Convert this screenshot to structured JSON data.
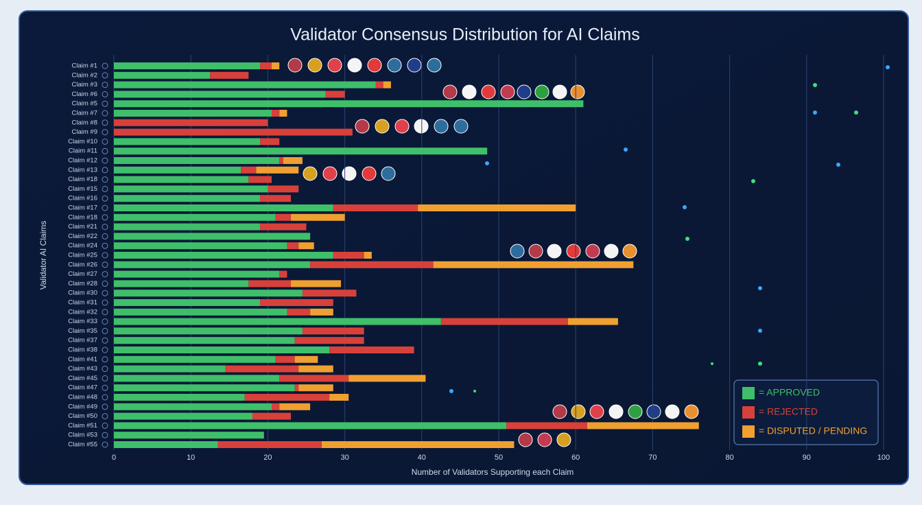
{
  "chart_data": {
    "type": "stacked_barh",
    "title": "Validator Consensus Distribution for AI Claims",
    "xlabel": "Number of Validators Supporting each Claim",
    "ylabel": "Validator AI Claims",
    "categories": [
      "Claim #1",
      "Claim #2",
      "Claim #3",
      "Claim #6",
      "Claim #5",
      "Claim #7",
      "Claim #8",
      "Claim #9",
      "Claim #10",
      "Claim #11",
      "Claim #12",
      "Claim #13",
      "Claim #18",
      "Claim #15",
      "Claim #16",
      "Claim #17",
      "Claim #18",
      "Claim #21",
      "Claim #22",
      "Claim #24",
      "Claim #25",
      "Claim #26",
      "Claim #27",
      "Claim #28",
      "Claim #30",
      "Claim #31",
      "Claim #32",
      "Claim #33",
      "Claim #35",
      "Claim #37",
      "Claim #38",
      "Claim #41",
      "Claim #43",
      "Claim #45",
      "Claim #47",
      "Claim #48",
      "Claim #49",
      "Claim #50",
      "Claim #51",
      "Claim #53",
      "Claim #55"
    ],
    "series": [
      {
        "name": "= APPROVED",
        "color": "#3fbf6a",
        "values": [
          19,
          12.5,
          34,
          27.5,
          61,
          20.5,
          0,
          0,
          19,
          48.5,
          21.5,
          16.5,
          17.5,
          20,
          19,
          28.5,
          21,
          19,
          25.5,
          22.5,
          28.5,
          25.5,
          21.5,
          17.5,
          24.5,
          19,
          22.5,
          42.5,
          24.5,
          23.5,
          28,
          21,
          14.5,
          21.5,
          23.5,
          17,
          20.5,
          18,
          51,
          19.5,
          13.5
        ]
      },
      {
        "name": "= REJECTED",
        "color": "#d8413a",
        "values": [
          1.5,
          5,
          1,
          2.5,
          0,
          1,
          20,
          31,
          2.5,
          0,
          0.5,
          2,
          3,
          4,
          4,
          11,
          2,
          6,
          0,
          1.5,
          4,
          16,
          1,
          5.5,
          7,
          9.5,
          3,
          16.5,
          8,
          9,
          11,
          2.5,
          9.5,
          9,
          0.5,
          11,
          1,
          5,
          10.5,
          0,
          13.5
        ]
      },
      {
        "name": "= DISPUTED / PENDING",
        "color": "#f0a030",
        "values": [
          1,
          0,
          1,
          0,
          0,
          1,
          0,
          0,
          0,
          0,
          2.5,
          5.5,
          0,
          0,
          0,
          20.5,
          7,
          0,
          0,
          2,
          1,
          26,
          0,
          6.5,
          0,
          0,
          3,
          6.5,
          0,
          0,
          0,
          3,
          4.5,
          10,
          4.5,
          2.5,
          4,
          0,
          14.5,
          0,
          25
        ]
      }
    ],
    "xlim": [
      0,
      100
    ],
    "xticks": [
      0,
      10,
      20,
      30,
      40,
      50,
      60,
      70,
      80,
      90,
      100
    ],
    "grid": true,
    "legend": "lower right"
  }
}
